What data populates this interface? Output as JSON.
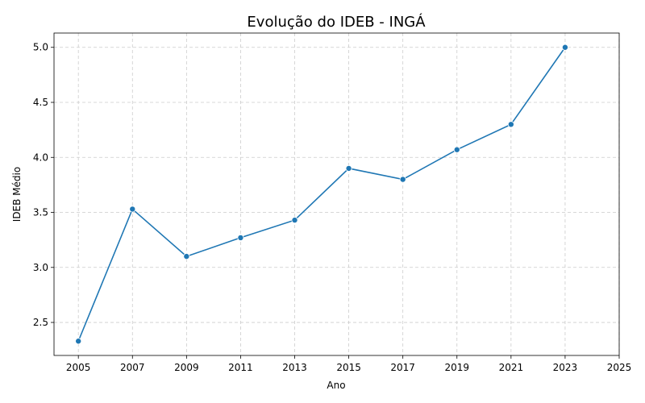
{
  "chart_data": {
    "type": "line",
    "title": "Evolução do IDEB - INGÁ",
    "xlabel": "Ano",
    "ylabel": "IDEB Médio",
    "xlim": [
      2004.1,
      2025.0
    ],
    "ylim": [
      2.2,
      5.13
    ],
    "xticks": [
      2005,
      2007,
      2009,
      2011,
      2013,
      2015,
      2017,
      2019,
      2021,
      2023,
      2025
    ],
    "yticks": [
      2.5,
      3.0,
      3.5,
      4.0,
      4.5,
      5.0
    ],
    "grid": true,
    "series": [
      {
        "color": "#1f77b4",
        "x": [
          2005,
          2007,
          2009,
          2011,
          2013,
          2015,
          2017,
          2019,
          2021,
          2023
        ],
        "y": [
          2.33,
          3.53,
          3.1,
          3.27,
          3.43,
          3.9,
          3.8,
          4.07,
          4.3,
          5.0
        ]
      }
    ]
  }
}
